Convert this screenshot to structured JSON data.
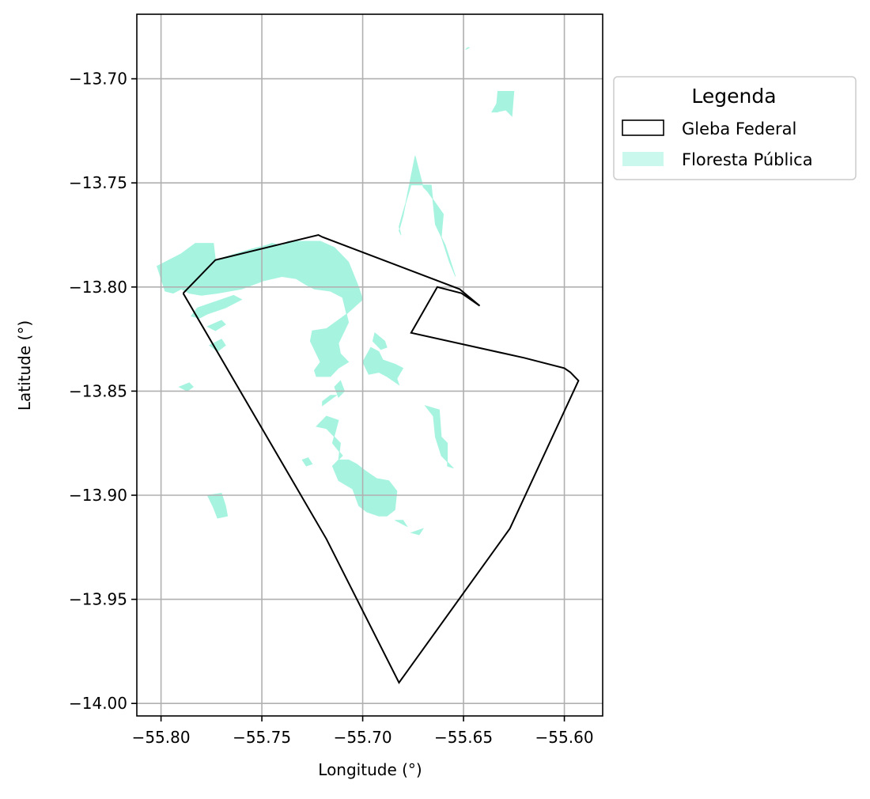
{
  "chart_data": {
    "type": "map",
    "xlabel": "Longitude (°)",
    "ylabel": "Latitude (°)",
    "xlim": [
      -55.812,
      -55.581
    ],
    "ylim": [
      -14.006,
      -13.669
    ],
    "grid": true,
    "x_ticks": [
      -55.8,
      -55.75,
      -55.7,
      -55.65,
      -55.6
    ],
    "x_tick_labels": [
      "−55.80",
      "−55.75",
      "−55.70",
      "−55.65",
      "−55.60"
    ],
    "y_ticks": [
      -13.7,
      -13.75,
      -13.8,
      -13.85,
      -13.9,
      -13.95,
      -14.0
    ],
    "y_tick_labels": [
      "−13.70",
      "−13.75",
      "−13.80",
      "−13.85",
      "−13.90",
      "−13.95",
      "−14.00"
    ],
    "legend": {
      "title": "Legenda",
      "placement": "outside-top-right",
      "entries": [
        {
          "label": "Gleba Federal",
          "style": "outline",
          "color": "#000000"
        },
        {
          "label": "Floresta Pública",
          "style": "fill",
          "color": "#A6F4E0"
        }
      ]
    },
    "gleba_federal": [
      [
        -55.789,
        -13.803
      ],
      [
        -55.773,
        -13.787
      ],
      [
        -55.722,
        -13.775
      ],
      [
        -55.72,
        -13.776
      ],
      [
        -55.652,
        -13.801
      ],
      [
        -55.642,
        -13.809
      ],
      [
        -55.651,
        -13.803
      ],
      [
        -55.663,
        -13.8
      ],
      [
        -55.676,
        -13.822
      ],
      [
        -55.62,
        -13.834
      ],
      [
        -55.6,
        -13.839
      ],
      [
        -55.597,
        -13.841
      ],
      [
        -55.593,
        -13.845
      ],
      [
        -55.627,
        -13.916
      ],
      [
        -55.682,
        -13.99
      ],
      [
        -55.718,
        -13.921
      ],
      [
        -55.789,
        -13.803
      ]
    ],
    "floresta_publica": [
      [
        [
          -55.682,
          -13.771
        ],
        [
          -55.68,
          -13.764
        ],
        [
          -55.676,
          -13.751
        ],
        [
          -55.666,
          -13.751
        ],
        [
          -55.664,
          -13.77
        ],
        [
          -55.659,
          -13.78
        ],
        [
          -55.654,
          -13.795
        ],
        [
          -55.657,
          -13.788
        ],
        [
          -55.661,
          -13.776
        ],
        [
          -55.66,
          -13.765
        ],
        [
          -55.668,
          -13.754
        ],
        [
          -55.67,
          -13.752
        ],
        [
          -55.674,
          -13.737
        ],
        [
          -55.68,
          -13.766
        ],
        [
          -55.682,
          -13.773
        ],
        [
          -55.681,
          -13.775
        ]
      ],
      [
        [
          -55.633,
          -13.706
        ],
        [
          -55.625,
          -13.706
        ],
        [
          -55.626,
          -13.718
        ],
        [
          -55.629,
          -13.715
        ],
        [
          -55.634,
          -13.716
        ]
      ],
      [
        [
          -55.636,
          -13.716
        ],
        [
          -55.633,
          -13.716
        ],
        [
          -55.633,
          -13.711
        ]
      ],
      [
        [
          -55.648,
          -13.685
        ],
        [
          -55.649,
          -13.686
        ],
        [
          -55.647,
          -13.685
        ]
      ],
      [
        [
          -55.802,
          -13.79
        ],
        [
          -55.79,
          -13.784
        ],
        [
          -55.783,
          -13.779
        ],
        [
          -55.774,
          -13.779
        ],
        [
          -55.773,
          -13.787
        ],
        [
          -55.756,
          -13.782
        ],
        [
          -55.748,
          -13.78
        ],
        [
          -55.745,
          -13.779
        ],
        [
          -55.74,
          -13.78
        ],
        [
          -55.737,
          -13.778
        ],
        [
          -55.721,
          -13.778
        ],
        [
          -55.714,
          -13.781
        ],
        [
          -55.707,
          -13.788
        ],
        [
          -55.702,
          -13.8
        ],
        [
          -55.7,
          -13.806
        ],
        [
          -55.708,
          -13.813
        ],
        [
          -55.718,
          -13.82
        ],
        [
          -55.725,
          -13.821
        ],
        [
          -55.726,
          -13.826
        ],
        [
          -55.721,
          -13.836
        ],
        [
          -55.724,
          -13.84
        ],
        [
          -55.723,
          -13.843
        ],
        [
          -55.716,
          -13.843
        ],
        [
          -55.712,
          -13.839
        ],
        [
          -55.707,
          -13.836
        ],
        [
          -55.711,
          -13.832
        ],
        [
          -55.712,
          -13.827
        ],
        [
          -55.707,
          -13.817
        ],
        [
          -55.71,
          -13.805
        ],
        [
          -55.716,
          -13.802
        ],
        [
          -55.724,
          -13.801
        ],
        [
          -55.728,
          -13.799
        ],
        [
          -55.733,
          -13.796
        ],
        [
          -55.74,
          -13.795
        ],
        [
          -55.749,
          -13.797
        ],
        [
          -55.76,
          -13.801
        ],
        [
          -55.772,
          -13.803
        ],
        [
          -55.78,
          -13.804
        ],
        [
          -55.786,
          -13.803
        ],
        [
          -55.79,
          -13.801
        ],
        [
          -55.794,
          -13.803
        ],
        [
          -55.798,
          -13.802
        ]
      ],
      [
        [
          -55.782,
          -13.81
        ],
        [
          -55.773,
          -13.807
        ],
        [
          -55.764,
          -13.804
        ],
        [
          -55.76,
          -13.806
        ],
        [
          -55.768,
          -13.81
        ],
        [
          -55.777,
          -13.813
        ],
        [
          -55.781,
          -13.815
        ],
        [
          -55.785,
          -13.814
        ]
      ],
      [
        [
          -55.776,
          -13.828
        ],
        [
          -55.77,
          -13.825
        ],
        [
          -55.768,
          -13.828
        ],
        [
          -55.772,
          -13.831
        ]
      ],
      [
        [
          -55.777,
          -13.819
        ],
        [
          -55.77,
          -13.816
        ],
        [
          -55.768,
          -13.818
        ],
        [
          -55.773,
          -13.821
        ]
      ],
      [
        [
          -55.694,
          -13.822
        ],
        [
          -55.689,
          -13.826
        ],
        [
          -55.688,
          -13.829
        ],
        [
          -55.691,
          -13.83
        ],
        [
          -55.695,
          -13.826
        ]
      ],
      [
        [
          -55.696,
          -13.829
        ],
        [
          -55.692,
          -13.831
        ],
        [
          -55.69,
          -13.835
        ],
        [
          -55.684,
          -13.837
        ],
        [
          -55.68,
          -13.839
        ],
        [
          -55.683,
          -13.844
        ],
        [
          -55.682,
          -13.847
        ],
        [
          -55.685,
          -13.845
        ],
        [
          -55.688,
          -13.843
        ],
        [
          -55.692,
          -13.841
        ],
        [
          -55.697,
          -13.842
        ],
        [
          -55.7,
          -13.836
        ]
      ],
      [
        [
          -55.72,
          -13.855
        ],
        [
          -55.716,
          -13.852
        ],
        [
          -55.713,
          -13.852
        ],
        [
          -55.72,
          -13.857
        ]
      ],
      [
        [
          -55.711,
          -13.845
        ],
        [
          -55.709,
          -13.85
        ],
        [
          -55.712,
          -13.853
        ],
        [
          -55.714,
          -13.848
        ]
      ],
      [
        [
          -55.723,
          -13.867
        ],
        [
          -55.718,
          -13.862
        ],
        [
          -55.712,
          -13.864
        ],
        [
          -55.715,
          -13.875
        ],
        [
          -55.71,
          -13.881
        ],
        [
          -55.715,
          -13.886
        ],
        [
          -55.712,
          -13.893
        ],
        [
          -55.705,
          -13.897
        ],
        [
          -55.702,
          -13.905
        ],
        [
          -55.698,
          -13.908
        ],
        [
          -55.692,
          -13.91
        ],
        [
          -55.688,
          -13.91
        ],
        [
          -55.684,
          -13.907
        ],
        [
          -55.683,
          -13.898
        ],
        [
          -55.687,
          -13.893
        ],
        [
          -55.693,
          -13.892
        ],
        [
          -55.699,
          -13.888
        ],
        [
          -55.703,
          -13.885
        ],
        [
          -55.707,
          -13.883
        ],
        [
          -55.712,
          -13.883
        ],
        [
          -55.711,
          -13.875
        ],
        [
          -55.718,
          -13.868
        ]
      ],
      [
        [
          -55.669,
          -13.857
        ],
        [
          -55.662,
          -13.859
        ],
        [
          -55.661,
          -13.872
        ],
        [
          -55.658,
          -13.875
        ],
        [
          -55.658,
          -13.886
        ],
        [
          -55.655,
          -13.887
        ],
        [
          -55.661,
          -13.881
        ],
        [
          -55.664,
          -13.872
        ],
        [
          -55.665,
          -13.862
        ]
      ],
      [
        [
          -55.684,
          -13.912
        ],
        [
          -55.68,
          -13.912
        ],
        [
          -55.678,
          -13.915
        ],
        [
          -55.682,
          -13.913
        ]
      ],
      [
        [
          -55.676,
          -13.918
        ],
        [
          -55.672,
          -13.919
        ],
        [
          -55.67,
          -13.916
        ]
      ],
      [
        [
          -55.73,
          -13.883
        ],
        [
          -55.727,
          -13.882
        ],
        [
          -55.725,
          -13.885
        ],
        [
          -55.728,
          -13.886
        ]
      ],
      [
        [
          -55.777,
          -13.9
        ],
        [
          -55.77,
          -13.899
        ],
        [
          -55.768,
          -13.905
        ],
        [
          -55.767,
          -13.91
        ],
        [
          -55.772,
          -13.911
        ],
        [
          -55.774,
          -13.906
        ]
      ],
      [
        [
          -55.791,
          -13.848
        ],
        [
          -55.787,
          -13.85
        ],
        [
          -55.784,
          -13.848
        ],
        [
          -55.786,
          -13.846
        ]
      ]
    ]
  }
}
